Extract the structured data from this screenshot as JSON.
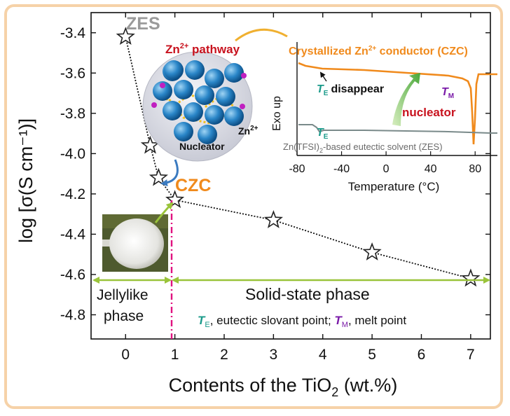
{
  "chart_data": {
    "type": "scatter",
    "xlabel": "Contents of the TiO",
    "xlabel_sub": "2",
    "xlabel_tail": " (wt.%)",
    "ylabel": "log [σ(S cm⁻¹)]",
    "xlim": [
      -0.7,
      7.4
    ],
    "ylim": [
      -4.92,
      -3.3
    ],
    "xticks": [
      "0",
      "1",
      "2",
      "3",
      "4",
      "5",
      "6",
      "7"
    ],
    "xtick_values": [
      0,
      1,
      2,
      3,
      4,
      5,
      6,
      7
    ],
    "yticks": [
      "-3.4",
      "-3.6",
      "-3.8",
      "-4.0",
      "-4.2",
      "-4.4",
      "-4.6",
      "-4.8"
    ],
    "ytick_values": [
      -3.4,
      -3.6,
      -3.8,
      -4.0,
      -4.2,
      -4.4,
      -4.6,
      -4.8
    ],
    "series": [
      {
        "x": [
          0,
          0.5,
          0.67,
          1,
          3,
          5,
          7
        ],
        "y": [
          -3.42,
          -3.96,
          -4.12,
          -4.23,
          -4.33,
          -4.49,
          -4.62
        ]
      }
    ],
    "marker": "star",
    "line_color": "#111111",
    "annotations": {
      "zes_label": "ZES",
      "czc_label": "CZC",
      "jelly_phase": "Jellylike phase",
      "jelly_line1": "Jellylike",
      "jelly_line2": "phase",
      "solid_phase": "Solid-state phase",
      "legend_te_sym": "T",
      "legend_te_sub": "E",
      "legend_te_text": ", eutectic slovant point; ",
      "legend_tm_sym": "T",
      "legend_tm_sub": "M",
      "legend_tm_text": ", melt point"
    },
    "colors": {
      "zes": "#9a9a9a",
      "czc": "#f08a1c",
      "phase_arrow": "#9ac43a",
      "boundary": "#e0117f",
      "te": "#1a9a8a",
      "tm": "#7a1aa8"
    },
    "inset": {
      "type": "line",
      "xlabel": "Temperature (°C)",
      "ylabel": "Exo up",
      "xticks": [
        "-80",
        "-40",
        "0",
        "40",
        "80"
      ],
      "xtick_values": [
        -80,
        -40,
        0,
        40,
        80
      ],
      "xlim": [
        -80,
        100
      ],
      "series": [
        {
          "name": "Crystallized Zn²⁺ conductor (CZC)",
          "color": "#f08a1c"
        },
        {
          "name": "Zn(TFSI)₂-based eutectic solvent (ZES)",
          "color": "#7a8a8a"
        }
      ],
      "labels": {
        "czc_prefix": "Crystallized Zn",
        "czc_sup": "2+",
        "czc_suffix": " conductor (CZC)",
        "zes_prefix": "Zn(TFSI)",
        "zes_sub": "2",
        "zes_suffix": "-based eutectic solvent (ZES)",
        "te_disappear": "disappear",
        "nucleator": "nucleator",
        "te": "T",
        "te_sub": "E",
        "tm": "T",
        "tm_sub": "M"
      }
    },
    "schematic": {
      "pathway_prefix": "Zn",
      "pathway_sup": "2+",
      "pathway_suffix": " pathway",
      "nucleator": "Nucleator",
      "zn_ion": "Zn",
      "zn_ion_sup": "2+"
    }
  }
}
